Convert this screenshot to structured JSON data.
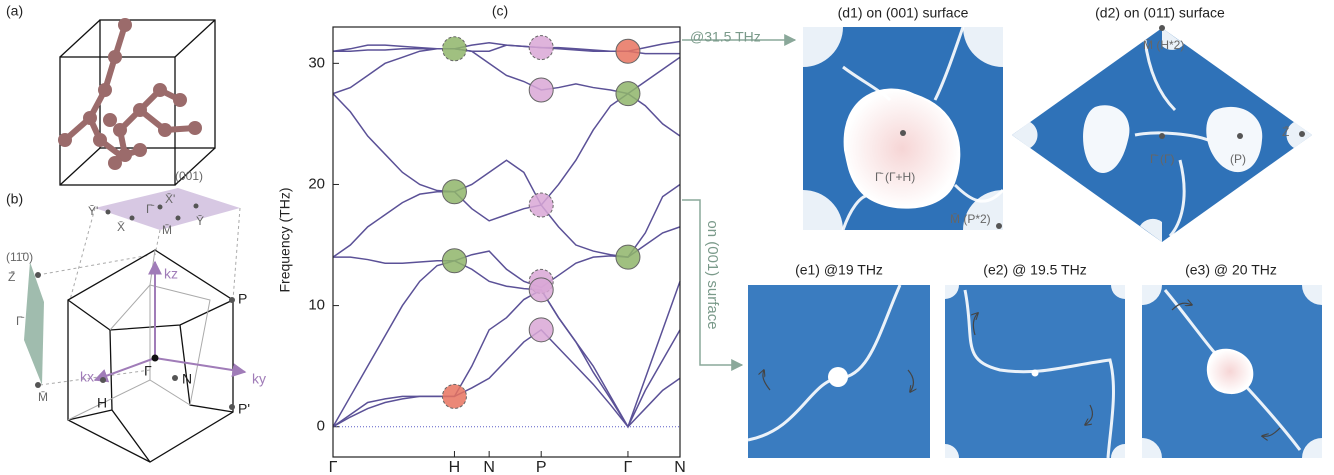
{
  "panels": {
    "a": "(a)",
    "b": "(b)",
    "d1": "(d1) on (001) surface",
    "d2": "(d2) on (011̄) surface",
    "e1": "(e1) @19 THz",
    "e2": "(e2) @ 19.5 THz",
    "e3": "(e3) @ 20 THz"
  },
  "annotations": {
    "energy": "@31.5 THz",
    "surface": "on (001) surface"
  },
  "bz_labels": {
    "plane_001": "(001)",
    "y_prime": "Ȳ'",
    "x_prime": "X̄'",
    "gamma_bar": "Γ̄",
    "x_bar": "X̄",
    "m_bar": "M̄",
    "y_bar": "Ȳ",
    "plane_110": "(11̄0)",
    "z_bar": "Z̄",
    "gamma_bar_side": "Γ̄",
    "m_bar_side": "M̄",
    "kz": "kz",
    "kx": "kx",
    "ky": "ky",
    "p": "P",
    "p_prime": "P'",
    "h": "H",
    "n": "N",
    "gamma": "Γ"
  },
  "d1_labels": {
    "center": "Γ̄ (Γ+H)",
    "corner": "M̄ (P*2)"
  },
  "d2_labels": {
    "top": "M̄ (H*2)",
    "center": "Γ̄ (Γ)",
    "p": "(P)",
    "z": "Z̄"
  },
  "chart_data": {
    "type": "line",
    "title": "(c)",
    "y_label": "Frequency (THz)",
    "categories": [
      "Γ",
      null,
      null,
      null,
      null,
      null,
      null,
      "H",
      null,
      "N",
      null,
      null,
      "P",
      null,
      null,
      null,
      null,
      "Γ",
      null,
      null,
      "N"
    ],
    "series": [
      {
        "color": "#5b5197",
        "values": [
          0,
          0.8,
          1.5,
          2,
          2.3,
          2.5,
          2.5,
          2.5,
          3.2,
          4,
          5.5,
          7,
          8,
          6.5,
          5,
          3.5,
          1.8,
          0,
          1.5,
          3,
          4
        ]
      },
      {
        "color": "#5b5197",
        "values": [
          0,
          1,
          2,
          2.3,
          2.5,
          2.5,
          2.5,
          2.5,
          5,
          8,
          9,
          10.5,
          11.3,
          9,
          7,
          4.5,
          2.3,
          0,
          3,
          5.5,
          8
        ]
      },
      {
        "color": "#5b5197",
        "values": [
          0,
          2.5,
          5,
          7.5,
          10,
          12,
          13.3,
          13.7,
          13,
          12,
          11.6,
          11.4,
          11.3,
          9,
          7,
          5,
          2.5,
          0,
          4,
          8,
          12
        ]
      },
      {
        "color": "#5b5197",
        "values": [
          14,
          14,
          13.8,
          13.5,
          13.5,
          13.6,
          13.7,
          13.7,
          14.2,
          14.5,
          13,
          12,
          11.5,
          12.5,
          13.5,
          14,
          14.1,
          14,
          15,
          16,
          16.5
        ]
      },
      {
        "color": "#5b5197",
        "values": [
          14,
          15,
          16.5,
          17.5,
          18.5,
          19.2,
          19.4,
          19.4,
          18,
          17,
          17.5,
          18,
          18.3,
          16.5,
          15,
          14.5,
          14.2,
          14,
          16,
          19,
          20
        ]
      },
      {
        "color": "#5b5197",
        "values": [
          27.5,
          26,
          24,
          22.5,
          21,
          20,
          19.5,
          19.4,
          20,
          21,
          22,
          21,
          18.3,
          20,
          22,
          24.5,
          26.5,
          27.5,
          26.5,
          25,
          24
        ]
      },
      {
        "color": "#5b5197",
        "values": [
          27.5,
          28,
          29,
          30,
          30.5,
          31,
          31.2,
          31.2,
          31,
          30,
          29,
          28.5,
          27.8,
          28,
          28.3,
          28,
          27.8,
          27.5,
          28.5,
          29.5,
          30.5
        ]
      },
      {
        "color": "#5b5197",
        "values": [
          31,
          31,
          31.1,
          31.1,
          31.2,
          31.2,
          31.2,
          31.2,
          31,
          31,
          31.5,
          31.4,
          31.3,
          31.2,
          31.1,
          31,
          31,
          31,
          30.8,
          30.8,
          30.8
        ]
      },
      {
        "color": "#5b5197",
        "values": [
          31,
          31.2,
          31.5,
          31.5,
          31.4,
          31.3,
          31.2,
          31.2,
          31.5,
          31.7,
          31.5,
          31.4,
          31.3,
          31.3,
          31.2,
          31.1,
          31,
          31,
          31.3,
          31.6,
          31.8
        ]
      }
    ],
    "nodal_points": [
      {
        "x": 7,
        "value": 31.2,
        "color": "#8fb56a",
        "dashed": true
      },
      {
        "x": 7,
        "value": 19.4,
        "color": "#8fb56a",
        "dashed": false
      },
      {
        "x": 7,
        "value": 13.7,
        "color": "#8fb56a",
        "dashed": false
      },
      {
        "x": 7,
        "value": 2.5,
        "color": "#e8735f",
        "dashed": true
      },
      {
        "x": 12,
        "value": 31.3,
        "color": "#d9a7d6",
        "dashed": true
      },
      {
        "x": 12,
        "value": 27.8,
        "color": "#d9a7d6",
        "dashed": false
      },
      {
        "x": 12,
        "value": 18.3,
        "color": "#d9a7d6",
        "dashed": true
      },
      {
        "x": 12,
        "value": 12,
        "color": "#d9a7d6",
        "dashed": true
      },
      {
        "x": 12,
        "value": 11.3,
        "color": "#d9a7d6",
        "dashed": false
      },
      {
        "x": 12,
        "value": 8,
        "color": "#d9a7d6",
        "dashed": false
      },
      {
        "x": 17,
        "value": 31,
        "color": "#e8735f",
        "dashed": false
      },
      {
        "x": 17,
        "value": 27.5,
        "color": "#8fb56a",
        "dashed": false
      },
      {
        "x": 17,
        "value": 14,
        "color": "#8fb56a",
        "dashed": false
      }
    ],
    "ylim": [
      -2.5,
      33
    ],
    "yticks": [
      0,
      10,
      20,
      30
    ]
  }
}
